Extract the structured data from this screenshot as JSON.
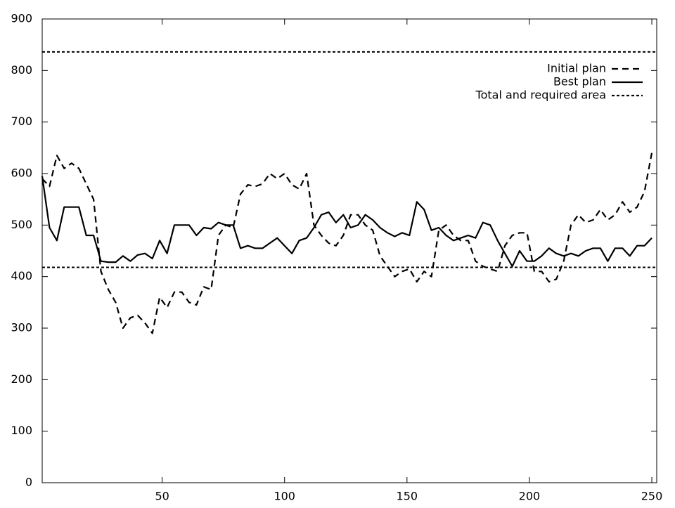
{
  "chart_data": {
    "type": "line",
    "x": [
      1,
      4,
      7,
      10,
      13,
      16,
      19,
      22,
      25,
      28,
      31,
      34,
      37,
      40,
      43,
      46,
      49,
      52,
      55,
      58,
      61,
      64,
      67,
      70,
      73,
      76,
      79,
      82,
      85,
      88,
      91,
      94,
      97,
      100,
      103,
      106,
      109,
      112,
      115,
      118,
      121,
      124,
      127,
      130,
      133,
      136,
      139,
      142,
      145,
      148,
      151,
      154,
      157,
      160,
      163,
      166,
      169,
      172,
      175,
      178,
      181,
      184,
      187,
      190,
      193,
      196,
      199,
      202,
      205,
      208,
      211,
      214,
      217,
      220,
      223,
      226,
      229,
      232,
      235,
      238,
      241,
      244,
      247,
      250
    ],
    "series": [
      {
        "name": "Initial plan",
        "color": "#000000",
        "style": "dashed",
        "values": [
          590,
          575,
          635,
          610,
          620,
          610,
          580,
          550,
          410,
          375,
          350,
          300,
          320,
          325,
          310,
          290,
          360,
          340,
          370,
          370,
          350,
          345,
          380,
          375,
          480,
          500,
          495,
          560,
          578,
          575,
          580,
          600,
          590,
          600,
          578,
          570,
          600,
          500,
          480,
          465,
          460,
          480,
          520,
          520,
          500,
          490,
          440,
          420,
          400,
          410,
          415,
          390,
          410,
          400,
          490,
          500,
          480,
          470,
          470,
          430,
          420,
          415,
          410,
          460,
          480,
          485,
          485,
          410,
          410,
          390,
          395,
          430,
          500,
          520,
          505,
          510,
          530,
          510,
          520,
          545,
          525,
          535,
          565,
          640
        ]
      },
      {
        "name": "Best plan",
        "color": "#000000",
        "style": "solid",
        "values": [
          595,
          495,
          470,
          535,
          535,
          535,
          480,
          480,
          430,
          428,
          428,
          440,
          430,
          442,
          445,
          435,
          470,
          445,
          500,
          500,
          500,
          480,
          495,
          493,
          505,
          500,
          500,
          455,
          460,
          455,
          455,
          465,
          475,
          460,
          445,
          470,
          475,
          495,
          520,
          525,
          505,
          520,
          495,
          500,
          520,
          510,
          495,
          485,
          478,
          485,
          480,
          545,
          530,
          490,
          495,
          480,
          470,
          475,
          480,
          475,
          505,
          500,
          470,
          445,
          420,
          450,
          430,
          430,
          440,
          455,
          445,
          440,
          445,
          440,
          450,
          455,
          455,
          430,
          455,
          455,
          440,
          460,
          460,
          475
        ]
      }
    ],
    "reference_lines": {
      "name": "Total and required area",
      "color": "#000000",
      "style": "dotted",
      "values": [
        836,
        418
      ]
    },
    "xlim": [
      1,
      252
    ],
    "ylim": [
      0,
      900
    ],
    "xticks": [
      50,
      100,
      150,
      200,
      250
    ],
    "yticks": [
      0,
      100,
      200,
      300,
      400,
      500,
      600,
      700,
      800,
      900
    ],
    "legend": "top-right"
  }
}
